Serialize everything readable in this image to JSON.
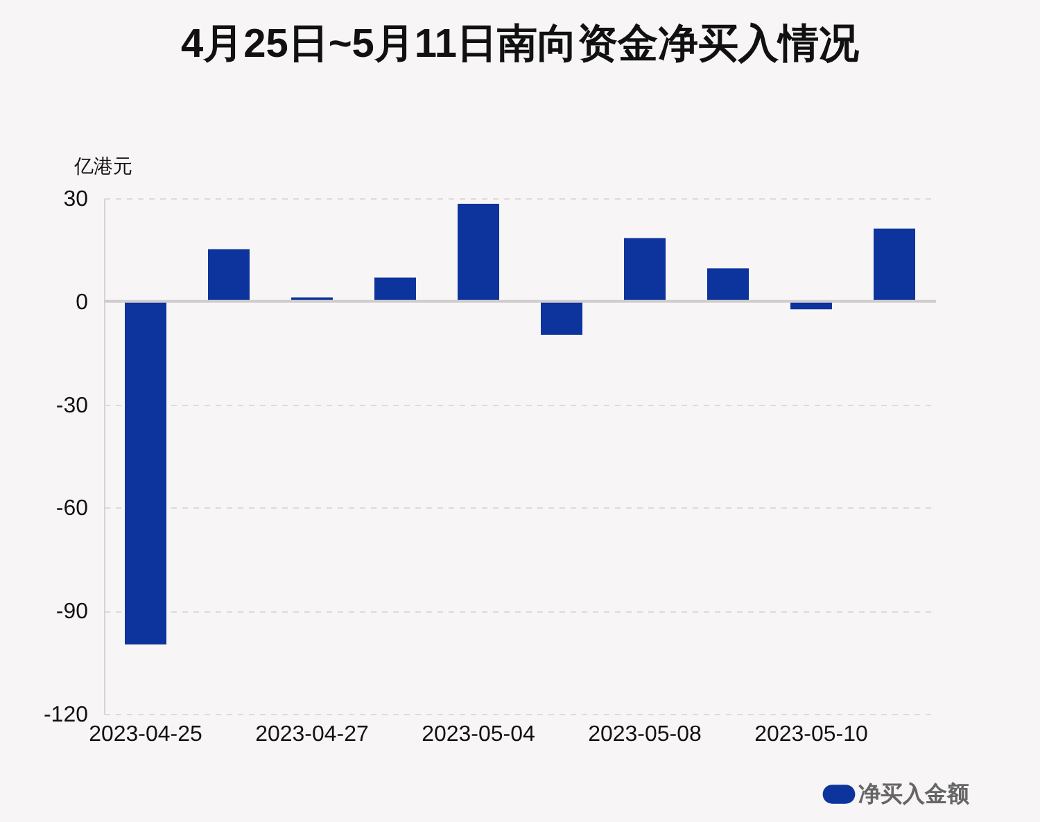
{
  "chart_data": {
    "type": "bar",
    "title": "4月25日~5月11日南向资金净买入情况",
    "ylabel": "亿港元",
    "categories": [
      "2023-04-25",
      null,
      "2023-04-27",
      null,
      "2023-05-04",
      null,
      "2023-05-08",
      null,
      "2023-05-10",
      null
    ],
    "series": [
      {
        "name": "净买入金额",
        "color": "#0d349c",
        "values": [
          -99.8,
          15.2,
          1.1,
          6.9,
          28.4,
          -9.7,
          18.4,
          9.6,
          -2.3,
          21.2
        ]
      }
    ],
    "ylim": [
      -120,
      30
    ],
    "yticks": [
      -120,
      -90,
      -60,
      -30,
      0,
      30
    ],
    "grid": "y",
    "legend": "bottom right"
  }
}
